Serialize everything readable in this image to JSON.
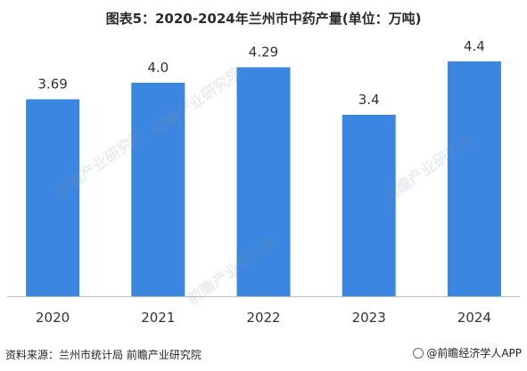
{
  "title": "图表5：2020-2024年兰州市中药产量(单位：万吨)",
  "source": "资料来源：兰州市统计局 前瞻产业研究院",
  "brand": "@前瞻经济学人APP",
  "watermark": "前瞻产业研究院",
  "colors": {
    "bar": "#3a86e0",
    "axis": "#bfbfbf",
    "label": "#333333"
  },
  "chart_data": {
    "type": "bar",
    "categories": [
      "2020",
      "2021",
      "2022",
      "2023",
      "2024"
    ],
    "values": [
      3.69,
      4.0,
      4.29,
      3.4,
      4.4
    ],
    "value_labels": [
      "3.69",
      "4.0",
      "4.29",
      "3.4",
      "4.4"
    ],
    "title": "图表5：2020-2024年兰州市中药产量(单位：万吨)",
    "xlabel": "",
    "ylabel": "",
    "ylim": [
      0,
      4.8
    ],
    "grid": false,
    "legend": "none"
  }
}
